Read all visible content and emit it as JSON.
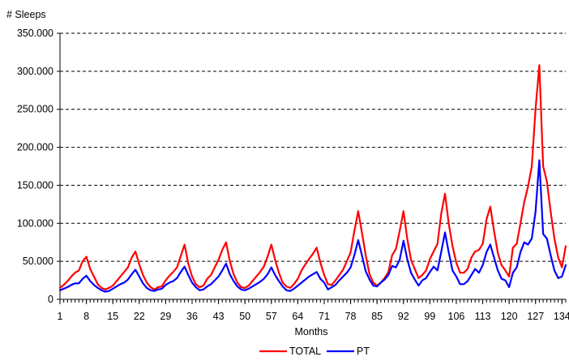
{
  "chart_data": {
    "type": "line",
    "ylabel": "# Sleeps",
    "xlabel": "Months",
    "ylim": [
      0,
      350000
    ],
    "xlim": [
      1,
      135
    ],
    "grid": true,
    "legend_position": "bottom",
    "y_tick_labels": [
      "0",
      "50.000",
      "100.000",
      "150.000",
      "200.000",
      "250.000",
      "300.000",
      "350.000"
    ],
    "y_tick_values": [
      0,
      50000,
      100000,
      150000,
      200000,
      250000,
      300000,
      350000
    ],
    "x_tick_labels": [
      "1",
      "8",
      "15",
      "22",
      "29",
      "36",
      "43",
      "50",
      "57",
      "64",
      "71",
      "78",
      "85",
      "92",
      "99",
      "106",
      "113",
      "120",
      "127",
      "134"
    ],
    "x_tick_values": [
      1,
      8,
      15,
      22,
      29,
      36,
      43,
      50,
      57,
      64,
      71,
      78,
      85,
      92,
      99,
      106,
      113,
      120,
      127,
      134
    ],
    "x": [
      1,
      2,
      3,
      4,
      5,
      6,
      7,
      8,
      9,
      10,
      11,
      12,
      13,
      14,
      15,
      16,
      17,
      18,
      19,
      20,
      21,
      22,
      23,
      24,
      25,
      26,
      27,
      28,
      29,
      30,
      31,
      32,
      33,
      34,
      35,
      36,
      37,
      38,
      39,
      40,
      41,
      42,
      43,
      44,
      45,
      46,
      47,
      48,
      49,
      50,
      51,
      52,
      53,
      54,
      55,
      56,
      57,
      58,
      59,
      60,
      61,
      62,
      63,
      64,
      65,
      66,
      67,
      68,
      69,
      70,
      71,
      72,
      73,
      74,
      75,
      76,
      77,
      78,
      79,
      80,
      81,
      82,
      83,
      84,
      85,
      86,
      87,
      88,
      89,
      90,
      91,
      92,
      93,
      94,
      95,
      96,
      97,
      98,
      99,
      100,
      101,
      102,
      103,
      104,
      105,
      106,
      107,
      108,
      109,
      110,
      111,
      112,
      113,
      114,
      115,
      116,
      117,
      118,
      119,
      120,
      121,
      122,
      123,
      124,
      125,
      126,
      127,
      128,
      129,
      130,
      131,
      132,
      133,
      134,
      135
    ],
    "series": [
      {
        "name": "TOTAL",
        "color": "#ff0000",
        "values": [
          15000,
          19000,
          24000,
          30000,
          35000,
          38000,
          50000,
          56000,
          40000,
          30000,
          20000,
          15000,
          13000,
          15000,
          18000,
          24000,
          30000,
          36000,
          42000,
          55000,
          63000,
          46000,
          32000,
          22000,
          16000,
          13000,
          16000,
          17000,
          25000,
          31000,
          36000,
          42000,
          57000,
          72000,
          47000,
          30000,
          20000,
          16000,
          18000,
          27000,
          32000,
          42000,
          52000,
          65000,
          75000,
          50000,
          33000,
          22000,
          16000,
          15000,
          18000,
          24000,
          30000,
          36000,
          43000,
          56000,
          72000,
          52000,
          35000,
          22000,
          17000,
          15000,
          20000,
          27000,
          38000,
          46000,
          53000,
          60000,
          68000,
          48000,
          32000,
          20000,
          19000,
          25000,
          32000,
          39000,
          50000,
          62000,
          90000,
          116000,
          88000,
          58000,
          33000,
          22000,
          18000,
          22000,
          28000,
          36000,
          58000,
          66000,
          90000,
          116000,
          80000,
          52000,
          40000,
          28000,
          32000,
          38000,
          53000,
          63000,
          73000,
          112000,
          139000,
          100000,
          70000,
          48000,
          35000,
          35000,
          40000,
          55000,
          63000,
          65000,
          73000,
          105000,
          122000,
          90000,
          61000,
          45000,
          38000,
          30000,
          68000,
          73000,
          100000,
          128000,
          148000,
          175000,
          250000,
          308000,
          175000,
          155000,
          115000,
          80000,
          55000,
          42000,
          70000
        ]
      },
      {
        "name": "PT",
        "color": "#0000ff",
        "values": [
          12000,
          14000,
          16000,
          19000,
          21000,
          21000,
          27000,
          31000,
          24000,
          19000,
          15000,
          12000,
          10000,
          11000,
          14000,
          17000,
          20000,
          22000,
          26000,
          33000,
          39000,
          30000,
          21000,
          15000,
          12000,
          11000,
          13000,
          14000,
          19000,
          22000,
          24000,
          28000,
          36000,
          43000,
          32000,
          22000,
          16000,
          12000,
          13000,
          17000,
          20000,
          25000,
          30000,
          38000,
          47000,
          33000,
          24000,
          17000,
          13000,
          12000,
          14000,
          17000,
          20000,
          23000,
          27000,
          33000,
          42000,
          32000,
          24000,
          17000,
          12000,
          11000,
          14000,
          18000,
          22000,
          26000,
          30000,
          33000,
          36000,
          27000,
          22000,
          13000,
          16000,
          19000,
          25000,
          30000,
          35000,
          42000,
          58000,
          78000,
          58000,
          37000,
          26000,
          18000,
          17000,
          22000,
          26000,
          32000,
          44000,
          42000,
          52000,
          77000,
          53000,
          35000,
          26000,
          18000,
          25000,
          28000,
          36000,
          43000,
          38000,
          62000,
          88000,
          62000,
          38000,
          30000,
          20000,
          20000,
          24000,
          32000,
          40000,
          35000,
          45000,
          62000,
          72000,
          55000,
          38000,
          27000,
          25000,
          16000,
          35000,
          42000,
          62000,
          75000,
          72000,
          80000,
          115000,
          183000,
          86000,
          80000,
          58000,
          38000,
          28000,
          30000,
          45000
        ]
      }
    ]
  }
}
